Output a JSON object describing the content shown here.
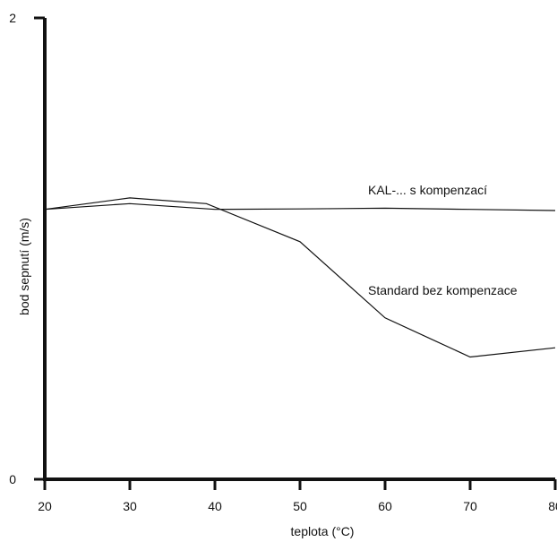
{
  "chart_data": {
    "type": "line",
    "title": "",
    "xlabel": "teplota (°C)",
    "ylabel": "bod sepnutí (m/s)",
    "xlim": [
      20,
      80
    ],
    "ylim": [
      0,
      2
    ],
    "x_ticks": [
      20,
      30,
      40,
      50,
      60,
      70,
      80
    ],
    "y_ticks": [
      0,
      2
    ],
    "grid": false,
    "legend": "inline",
    "series": [
      {
        "name": "KAL-... s kompenzací",
        "x": [
          20,
          30,
          40,
          50,
          60,
          70,
          80
        ],
        "y": [
          1.17,
          1.195,
          1.17,
          1.172,
          1.175,
          1.17,
          1.165
        ]
      },
      {
        "name": "Standard bez kompenzace",
        "x": [
          20,
          30,
          39,
          50,
          60,
          70,
          80
        ],
        "y": [
          1.17,
          1.22,
          1.195,
          1.03,
          0.7,
          0.53,
          0.57
        ]
      }
    ],
    "series_label_anchor": [
      {
        "x": 58,
        "y": 1.235
      },
      {
        "x": 58,
        "y": 0.8
      }
    ]
  }
}
